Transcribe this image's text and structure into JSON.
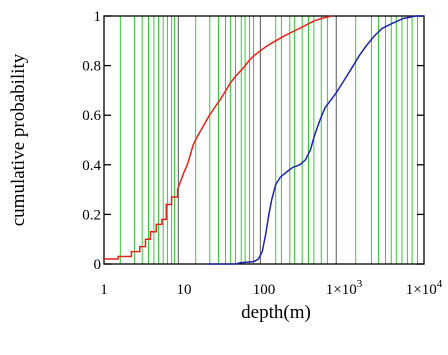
{
  "chart_data": {
    "type": "line",
    "title": "",
    "xlabel": "depth(m)",
    "ylabel": "cumulative probability",
    "xscale": "log",
    "xlim": [
      1,
      10000
    ],
    "ylim": [
      0,
      1
    ],
    "grid": "vertical lines",
    "legend": "none",
    "x_ticks": [
      {
        "value": 1,
        "label": "1"
      },
      {
        "value": 10,
        "label": "10"
      },
      {
        "value": 100,
        "label": "100"
      },
      {
        "value": 1000,
        "label": "1×10",
        "exp": "3"
      },
      {
        "value": 10000,
        "label": "1×10",
        "exp": "4"
      }
    ],
    "y_ticks": [
      {
        "value": 0,
        "label": "0"
      },
      {
        "value": 0.2,
        "label": "0.2"
      },
      {
        "value": 0.4,
        "label": "0.4"
      },
      {
        "value": 0.6,
        "label": "0.6"
      },
      {
        "value": 0.8,
        "label": "0.8"
      },
      {
        "value": 1,
        "label": "1"
      }
    ],
    "grid_lines_green": [
      1.6,
      2.4,
      3,
      3.6,
      4.2,
      4.8,
      5.5,
      6.2,
      7,
      7.6,
      14,
      21,
      27,
      33,
      38,
      44,
      52,
      58,
      66,
      74,
      140,
      165,
      210,
      240,
      300,
      360,
      420,
      520,
      620,
      1400,
      2200,
      2700,
      3300,
      3900,
      4500,
      5300,
      6200,
      7100,
      8300
    ],
    "grid_lines_dark": [
      8.5,
      90,
      800
    ],
    "series": [
      {
        "color": "#e8211a",
        "points": [
          [
            1,
            0.02
          ],
          [
            1.5,
            0.02
          ],
          [
            1.5,
            0.03
          ],
          [
            2.2,
            0.03
          ],
          [
            2.2,
            0.05
          ],
          [
            2.8,
            0.05
          ],
          [
            2.8,
            0.07
          ],
          [
            3.3,
            0.07
          ],
          [
            3.3,
            0.1
          ],
          [
            3.8,
            0.1
          ],
          [
            3.8,
            0.13
          ],
          [
            4.5,
            0.13
          ],
          [
            4.5,
            0.16
          ],
          [
            5.3,
            0.16
          ],
          [
            5.3,
            0.18
          ],
          [
            6.0,
            0.18
          ],
          [
            6.0,
            0.24
          ],
          [
            7.0,
            0.24
          ],
          [
            7.0,
            0.27
          ],
          [
            8.3,
            0.27
          ],
          [
            8.3,
            0.3
          ],
          [
            9,
            0.33
          ],
          [
            10,
            0.37
          ],
          [
            11,
            0.4
          ],
          [
            12,
            0.44
          ],
          [
            13,
            0.48
          ],
          [
            15,
            0.52
          ],
          [
            17,
            0.55
          ],
          [
            20,
            0.59
          ],
          [
            24,
            0.63
          ],
          [
            28,
            0.66
          ],
          [
            32,
            0.69
          ],
          [
            38,
            0.73
          ],
          [
            45,
            0.76
          ],
          [
            55,
            0.79
          ],
          [
            65,
            0.82
          ],
          [
            75,
            0.84
          ],
          [
            90,
            0.86
          ],
          [
            110,
            0.88
          ],
          [
            140,
            0.9
          ],
          [
            180,
            0.92
          ],
          [
            240,
            0.94
          ],
          [
            320,
            0.96
          ],
          [
            420,
            0.98
          ],
          [
            520,
            0.99
          ],
          [
            700,
            1.0
          ]
        ]
      },
      {
        "color": "#1c24b0",
        "points": [
          [
            20,
            0.0
          ],
          [
            45,
            0.0
          ],
          [
            50,
            0.005
          ],
          [
            60,
            0.007
          ],
          [
            75,
            0.01
          ],
          [
            85,
            0.02
          ],
          [
            95,
            0.05
          ],
          [
            105,
            0.12
          ],
          [
            115,
            0.2
          ],
          [
            125,
            0.26
          ],
          [
            140,
            0.32
          ],
          [
            160,
            0.35
          ],
          [
            190,
            0.37
          ],
          [
            230,
            0.39
          ],
          [
            280,
            0.4
          ],
          [
            330,
            0.42
          ],
          [
            380,
            0.46
          ],
          [
            430,
            0.52
          ],
          [
            500,
            0.58
          ],
          [
            580,
            0.63
          ],
          [
            680,
            0.66
          ],
          [
            800,
            0.69
          ],
          [
            1000,
            0.74
          ],
          [
            1250,
            0.79
          ],
          [
            1550,
            0.84
          ],
          [
            1900,
            0.88
          ],
          [
            2400,
            0.92
          ],
          [
            3000,
            0.95
          ],
          [
            4000,
            0.97
          ],
          [
            5500,
            0.99
          ],
          [
            8000,
            1.0
          ],
          [
            10000,
            1.0
          ]
        ]
      }
    ]
  }
}
